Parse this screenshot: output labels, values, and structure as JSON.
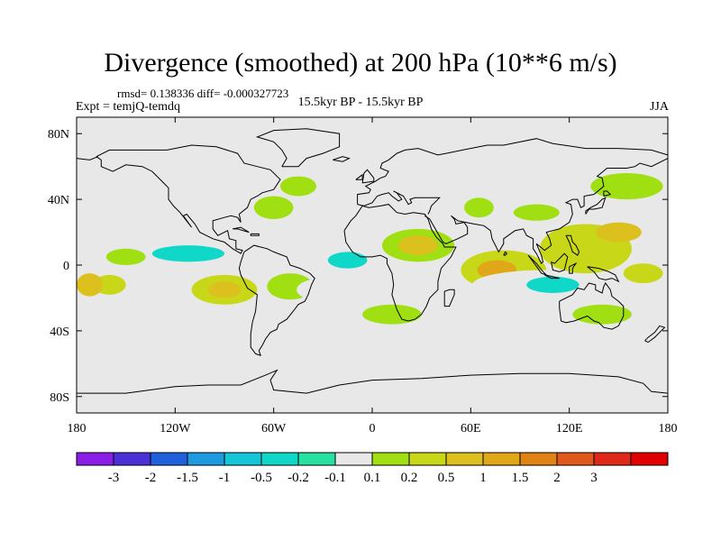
{
  "chart_data": {
    "type": "contour-map",
    "title": "Divergence (smoothed) at 200 hPa (10**6 m/s)",
    "stats_label": "rmsd= 0.138336 diff= -0.000327723",
    "experiment_label": "Expt = temjQ-temdq",
    "period_label": "15.5kyr BP - 15.5kyr BP",
    "season_label": "JJA",
    "x_axis": {
      "range": [
        -180,
        180
      ],
      "ticks": [
        {
          "value": -180,
          "label": "180"
        },
        {
          "value": -120,
          "label": "120W"
        },
        {
          "value": -60,
          "label": "60W"
        },
        {
          "value": 0,
          "label": "0"
        },
        {
          "value": 60,
          "label": "60E"
        },
        {
          "value": 120,
          "label": "120E"
        },
        {
          "value": 180,
          "label": "180"
        }
      ]
    },
    "y_axis": {
      "range": [
        -90,
        90
      ],
      "ticks": [
        {
          "value": 80,
          "label": "80N"
        },
        {
          "value": 40,
          "label": "40N"
        },
        {
          "value": 0,
          "label": "0"
        },
        {
          "value": -40,
          "label": "40S"
        },
        {
          "value": -80,
          "label": "80S"
        }
      ]
    },
    "colorbar": {
      "colors": [
        "#8a1ee6",
        "#4b30d8",
        "#2060dc",
        "#1e9be0",
        "#14c6d8",
        "#10d8c8",
        "#28e0a0",
        "#e8e8e8",
        "#a0e012",
        "#c8d818",
        "#dcc01e",
        "#e0a818",
        "#e08214",
        "#e0581a",
        "#e0281a",
        "#e00000"
      ],
      "labels": [
        "-3",
        "-2",
        "-1.5",
        "-1",
        "-0.5",
        "-0.2",
        "-0.1",
        "0.1",
        "0.2",
        "0.5",
        "1",
        "1.5",
        "2",
        "3"
      ]
    },
    "regions": [
      {
        "lon": -112,
        "lat": 8,
        "rlon": 38,
        "rlat": 9,
        "level": "-0.1"
      },
      {
        "lon": -112,
        "lat": 7,
        "rlon": 22,
        "rlat": 5,
        "level": "-0.5"
      },
      {
        "lon": -150,
        "lat": 5,
        "rlon": 12,
        "rlat": 5,
        "level": "0.1"
      },
      {
        "lon": -125,
        "lat": -14,
        "rlon": 20,
        "rlat": 8,
        "level": "-0.1"
      },
      {
        "lon": -90,
        "lat": -15,
        "rlon": 20,
        "rlat": 9,
        "level": "0.2"
      },
      {
        "lon": -90,
        "lat": -15,
        "rlon": 10,
        "rlat": 5,
        "level": "0.5"
      },
      {
        "lon": -160,
        "lat": -12,
        "rlon": 10,
        "rlat": 6,
        "level": "0.2"
      },
      {
        "lon": -172,
        "lat": -12,
        "rlon": 8,
        "rlat": 7,
        "level": "0.5"
      },
      {
        "lon": -60,
        "lat": 35,
        "rlon": 12,
        "rlat": 7,
        "level": "0.1"
      },
      {
        "lon": -45,
        "lat": 48,
        "rlon": 11,
        "rlat": 6,
        "level": "0.1"
      },
      {
        "lon": -35,
        "lat": 33,
        "rlon": 11,
        "rlat": 8,
        "level": "-0.1"
      },
      {
        "lon": -20,
        "lat": 10,
        "rlon": 38,
        "rlat": 10,
        "level": "-0.1"
      },
      {
        "lon": -15,
        "lat": 3,
        "rlon": 12,
        "rlat": 5,
        "level": "-0.5"
      },
      {
        "lon": -50,
        "lat": -13,
        "rlon": 14,
        "rlat": 8,
        "level": "0.1"
      },
      {
        "lon": -30,
        "lat": -15,
        "rlon": 16,
        "rlat": 7,
        "level": "-0.1"
      },
      {
        "lon": 28,
        "lat": 12,
        "rlon": 22,
        "rlat": 10,
        "level": "0.1"
      },
      {
        "lon": 28,
        "lat": 12,
        "rlon": 12,
        "rlat": 6,
        "level": "0.5"
      },
      {
        "lon": 35,
        "lat": -10,
        "rlon": 18,
        "rlat": 9,
        "level": "-0.1"
      },
      {
        "lon": 12,
        "lat": -30,
        "rlon": 18,
        "rlat": 6,
        "level": "0.1"
      },
      {
        "lon": 80,
        "lat": -3,
        "rlon": 26,
        "rlat": 12,
        "level": "0.2"
      },
      {
        "lon": 76,
        "lat": -3,
        "rlon": 12,
        "rlat": 6,
        "level": "1"
      },
      {
        "lon": 105,
        "lat": -12,
        "rlon": 44,
        "rlat": 9,
        "level": "-0.1"
      },
      {
        "lon": 110,
        "lat": -12,
        "rlon": 16,
        "rlat": 5,
        "level": "-0.5"
      },
      {
        "lon": 130,
        "lat": 10,
        "rlon": 28,
        "rlat": 15,
        "level": "0.2"
      },
      {
        "lon": 150,
        "lat": 20,
        "rlon": 14,
        "rlat": 6,
        "level": "0.5"
      },
      {
        "lon": 155,
        "lat": 48,
        "rlon": 22,
        "rlat": 8,
        "level": "0.1"
      },
      {
        "lon": 165,
        "lat": -5,
        "rlon": 12,
        "rlat": 6,
        "level": "0.2"
      },
      {
        "lon": 140,
        "lat": -30,
        "rlon": 18,
        "rlat": 6,
        "level": "0.1"
      },
      {
        "lon": 65,
        "lat": 35,
        "rlon": 9,
        "rlat": 6,
        "level": "0.1"
      },
      {
        "lon": 100,
        "lat": 32,
        "rlon": 14,
        "rlat": 5,
        "level": "0.1"
      }
    ]
  }
}
